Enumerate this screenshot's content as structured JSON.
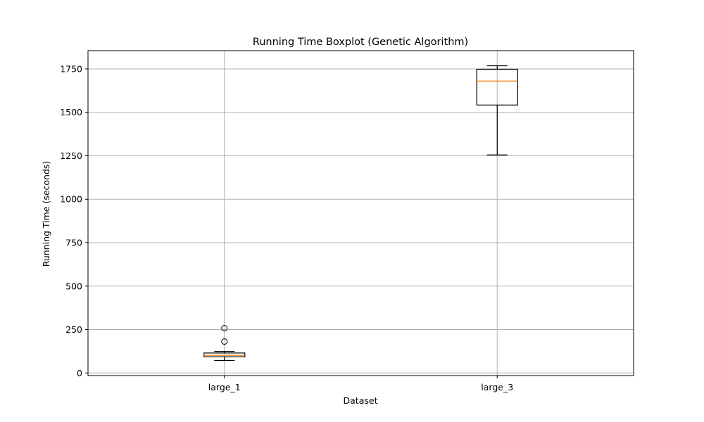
{
  "chart_data": {
    "type": "boxplot",
    "title": "Running Time Boxplot (Genetic Algorithm)",
    "xlabel": "Dataset",
    "ylabel": "Running Time (seconds)",
    "ylim": [
      -15,
      1855
    ],
    "yticks": [
      0,
      250,
      500,
      750,
      1000,
      1250,
      1500,
      1750
    ],
    "grid": true,
    "categories": [
      "large_1",
      "large_3"
    ],
    "boxes": [
      {
        "category": "large_1",
        "whisker_low": 72,
        "q1": 93,
        "median": 102,
        "q3": 115,
        "whisker_high": 124,
        "outliers": [
          181,
          258
        ]
      },
      {
        "category": "large_3",
        "whisker_low": 1255,
        "q1": 1542,
        "median": 1680,
        "q3": 1748,
        "whisker_high": 1768,
        "outliers": []
      }
    ],
    "colors": {
      "box": "#000000",
      "median": "#ff7f0e",
      "grid": "#b0b0b0"
    }
  }
}
